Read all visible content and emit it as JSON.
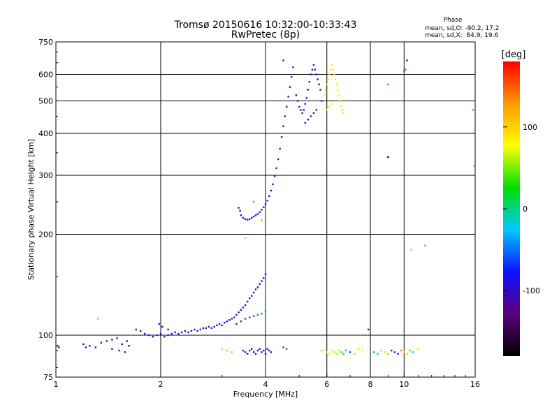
{
  "chart_data": {
    "type": "scatter",
    "title": "Tromsø 20150616 10:32:00-10:33:43",
    "subtitle": "RwPretec (8p)",
    "xlabel": "Frequency [MHz]",
    "ylabel": "Stationary phase Virtual Height [km]",
    "x_scale": "log",
    "y_scale": "log",
    "xlim": [
      1,
      16
    ],
    "ylim": [
      75,
      750
    ],
    "x_ticks": [
      1,
      2,
      4,
      6,
      8,
      10,
      16
    ],
    "y_ticks": [
      75,
      100,
      200,
      300,
      400,
      500,
      600,
      750
    ],
    "grid": true,
    "phase_info": {
      "title": "Phase",
      "line_o": "mean, sd,O: -90.2, 17.2",
      "line_x": "mean, sd,X:  84.9, 19.6"
    },
    "colorbar": {
      "label": "[deg]",
      "ticks": [
        "100",
        "0",
        "-100"
      ],
      "tick_values": [
        100,
        0,
        -100
      ],
      "range": [
        -180,
        180
      ],
      "colors": [
        "#000000",
        "#5a007a",
        "#1010ff",
        "#00c8ff",
        "#00e000",
        "#ffff00",
        "#ff9a00",
        "#ff0000"
      ]
    },
    "series": [
      {
        "points": [
          [
            1.01,
            93,
            -90
          ],
          [
            1.02,
            92,
            -80
          ],
          [
            1.2,
            94,
            -95
          ],
          [
            1.22,
            92,
            -100
          ],
          [
            1.25,
            93,
            -90
          ],
          [
            1.3,
            92,
            -85
          ],
          [
            1.35,
            95,
            -88
          ],
          [
            1.4,
            96,
            -92
          ],
          [
            1.45,
            97,
            -95
          ],
          [
            1.5,
            98,
            -90
          ],
          [
            1.55,
            94,
            -100
          ],
          [
            1.6,
            96,
            -85
          ],
          [
            1.62,
            93,
            -80
          ],
          [
            1.45,
            91,
            -70
          ],
          [
            1.52,
            90,
            -95
          ],
          [
            1.58,
            89,
            -100
          ],
          [
            1.7,
            104,
            -92
          ],
          [
            1.75,
            103,
            -88
          ],
          [
            1.8,
            101,
            -90
          ],
          [
            1.85,
            100,
            -95
          ],
          [
            1.9,
            99,
            -100
          ],
          [
            1.95,
            100,
            -90
          ],
          [
            2.0,
            101,
            -85
          ],
          [
            2.05,
            99,
            -88
          ],
          [
            2.1,
            100,
            -92
          ],
          [
            2.15,
            101,
            -95
          ],
          [
            2.2,
            102,
            -90
          ],
          [
            2.25,
            101,
            -88
          ],
          [
            2.3,
            102,
            -92
          ],
          [
            2.35,
            103,
            -95
          ],
          [
            2.4,
            102,
            -90
          ],
          [
            2.45,
            103,
            -88
          ],
          [
            2.5,
            104,
            -92
          ],
          [
            2.55,
            103,
            -95
          ],
          [
            2.6,
            104,
            -90
          ],
          [
            2.65,
            105,
            -88
          ],
          [
            2.7,
            105,
            -92
          ],
          [
            2.75,
            106,
            -95
          ],
          [
            2.8,
            105,
            -90
          ],
          [
            2.85,
            106,
            -88
          ],
          [
            2.9,
            107,
            -92
          ],
          [
            2.95,
            108,
            -95
          ],
          [
            3.0,
            107,
            -90
          ],
          [
            3.05,
            109,
            -88
          ],
          [
            3.1,
            110,
            -92
          ],
          [
            3.15,
            111,
            -95
          ],
          [
            3.2,
            112,
            -90
          ],
          [
            3.25,
            113,
            -88
          ],
          [
            3.3,
            115,
            -92
          ],
          [
            3.35,
            117,
            -95
          ],
          [
            3.4,
            119,
            -90
          ],
          [
            3.45,
            121,
            -88
          ],
          [
            3.5,
            123,
            -92
          ],
          [
            3.55,
            126,
            -95
          ],
          [
            3.6,
            129,
            -90
          ],
          [
            3.65,
            131,
            -88
          ],
          [
            3.7,
            134,
            -92
          ],
          [
            3.75,
            137,
            -95
          ],
          [
            3.8,
            139,
            -90
          ],
          [
            3.85,
            142,
            -88
          ],
          [
            3.9,
            145,
            -92
          ],
          [
            3.95,
            148,
            -95
          ],
          [
            4.0,
            152,
            -90
          ],
          [
            3.3,
            108,
            -75
          ],
          [
            3.4,
            110,
            -70
          ],
          [
            3.5,
            112,
            -65
          ],
          [
            3.6,
            113,
            -60
          ],
          [
            3.7,
            114,
            -55
          ],
          [
            3.8,
            115,
            -50
          ],
          [
            3.9,
            116,
            -45
          ],
          [
            4.0,
            118,
            -40
          ],
          [
            1.98,
            108,
            -80
          ],
          [
            2.02,
            106,
            -82
          ],
          [
            2.1,
            104,
            -84
          ],
          [
            3.35,
            240,
            -95
          ],
          [
            3.38,
            235,
            -92
          ],
          [
            3.4,
            228,
            -90
          ],
          [
            3.45,
            224,
            -92
          ],
          [
            3.5,
            222,
            -95
          ],
          [
            3.55,
            221,
            -90
          ],
          [
            3.6,
            222,
            -88
          ],
          [
            3.65,
            224,
            -92
          ],
          [
            3.7,
            226,
            -95
          ],
          [
            3.75,
            228,
            -90
          ],
          [
            3.8,
            230,
            -88
          ],
          [
            3.85,
            233,
            -92
          ],
          [
            3.9,
            237,
            -95
          ],
          [
            3.95,
            241,
            -90
          ],
          [
            4.0,
            246,
            -88
          ],
          [
            4.05,
            252,
            -92
          ],
          [
            4.1,
            260,
            -95
          ],
          [
            4.15,
            270,
            -90
          ],
          [
            4.2,
            282,
            -88
          ],
          [
            4.25,
            298,
            -92
          ],
          [
            4.3,
            315,
            -95
          ],
          [
            4.35,
            335,
            -90
          ],
          [
            4.4,
            360,
            -88
          ],
          [
            4.45,
            390,
            -92
          ],
          [
            4.5,
            420,
            -95
          ],
          [
            4.55,
            450,
            -90
          ],
          [
            4.6,
            480,
            -88
          ],
          [
            4.65,
            515,
            -92
          ],
          [
            4.7,
            550,
            -95
          ],
          [
            4.75,
            590,
            -90
          ],
          [
            4.8,
            630,
            -88
          ],
          [
            4.5,
            660,
            -85
          ],
          [
            4.9,
            520,
            -100
          ],
          [
            4.95,
            500,
            -95
          ],
          [
            5.0,
            480,
            -90
          ],
          [
            5.05,
            470,
            -92
          ],
          [
            5.1,
            460,
            -95
          ],
          [
            5.15,
            470,
            -90
          ],
          [
            5.2,
            490,
            -88
          ],
          [
            5.25,
            510,
            -92
          ],
          [
            5.3,
            540,
            -95
          ],
          [
            5.35,
            570,
            -90
          ],
          [
            5.4,
            600,
            -88
          ],
          [
            5.45,
            620,
            -92
          ],
          [
            5.5,
            640,
            -95
          ],
          [
            5.55,
            620,
            -90
          ],
          [
            5.6,
            600,
            -88
          ],
          [
            5.65,
            580,
            -92
          ],
          [
            5.7,
            560,
            -95
          ],
          [
            5.75,
            540,
            -90
          ],
          [
            5.2,
            430,
            -88
          ],
          [
            5.3,
            440,
            -92
          ],
          [
            5.4,
            450,
            -95
          ],
          [
            5.5,
            460,
            -90
          ],
          [
            5.6,
            470,
            -88
          ],
          [
            5.8,
            500,
            -92
          ],
          [
            5.9,
            520,
            80
          ],
          [
            5.95,
            540,
            90
          ],
          [
            6.0,
            560,
            85
          ],
          [
            6.05,
            580,
            88
          ],
          [
            6.1,
            600,
            92
          ],
          [
            6.15,
            620,
            95
          ],
          [
            6.2,
            640,
            90
          ],
          [
            6.25,
            620,
            85
          ],
          [
            6.3,
            600,
            88
          ],
          [
            6.35,
            580,
            92
          ],
          [
            6.4,
            560,
            95
          ],
          [
            6.45,
            540,
            90
          ],
          [
            6.5,
            520,
            85
          ],
          [
            6.55,
            500,
            88
          ],
          [
            6.6,
            480,
            92
          ],
          [
            6.65,
            470,
            95
          ],
          [
            6.7,
            460,
            90
          ],
          [
            6.0,
            470,
            80
          ],
          [
            6.1,
            480,
            85
          ],
          [
            6.2,
            490,
            75
          ],
          [
            1.32,
            112,
            120
          ],
          [
            3.5,
            195,
            110
          ],
          [
            3.7,
            250,
            140
          ],
          [
            3.9,
            220,
            130
          ],
          [
            3.45,
            90,
            -95
          ],
          [
            3.5,
            89,
            -100
          ],
          [
            3.55,
            88,
            -90
          ],
          [
            3.6,
            90,
            -85
          ],
          [
            3.65,
            91,
            -92
          ],
          [
            3.7,
            89,
            -95
          ],
          [
            3.75,
            88,
            -90
          ],
          [
            3.8,
            90,
            -88
          ],
          [
            3.85,
            91,
            -92
          ],
          [
            3.9,
            89,
            -95
          ],
          [
            3.95,
            90,
            -90
          ],
          [
            4.0,
            88,
            -88
          ],
          [
            4.05,
            91,
            -92
          ],
          [
            4.1,
            90,
            -95
          ],
          [
            4.15,
            89,
            -90
          ],
          [
            3.0,
            91,
            110
          ],
          [
            3.1,
            90,
            115
          ],
          [
            3.2,
            89,
            120
          ],
          [
            4.5,
            92,
            -60
          ],
          [
            4.6,
            91,
            -55
          ],
          [
            5.8,
            90,
            60
          ],
          [
            6.0,
            89,
            70
          ],
          [
            6.1,
            88,
            80
          ],
          [
            6.2,
            90,
            90
          ],
          [
            6.3,
            89,
            100
          ],
          [
            6.4,
            88,
            60
          ],
          [
            6.5,
            90,
            70
          ],
          [
            6.6,
            89,
            40
          ],
          [
            6.7,
            88,
            20
          ],
          [
            6.8,
            90,
            -20
          ],
          [
            7.0,
            89,
            -60
          ],
          [
            7.2,
            88,
            110
          ],
          [
            7.4,
            91,
            100
          ],
          [
            7.6,
            90,
            80
          ],
          [
            8.2,
            89,
            -40
          ],
          [
            8.4,
            88,
            20
          ],
          [
            8.6,
            90,
            60
          ],
          [
            8.8,
            89,
            100
          ],
          [
            9.0,
            88,
            120
          ],
          [
            9.2,
            90,
            -100
          ],
          [
            9.4,
            89,
            -90
          ],
          [
            9.6,
            88,
            -80
          ],
          [
            9.8,
            90,
            140
          ],
          [
            10.0,
            89,
            100
          ],
          [
            10.2,
            88,
            60
          ],
          [
            10.4,
            90,
            40
          ],
          [
            10.6,
            89,
            -20
          ],
          [
            11.0,
            91,
            90
          ],
          [
            7.9,
            104,
            -100
          ],
          [
            9.0,
            340,
            -180
          ],
          [
            9.0,
            560,
            160
          ],
          [
            10.2,
            660,
            -110
          ],
          [
            10.1,
            620,
            -40
          ],
          [
            10.0,
            615,
            -50
          ],
          [
            10.5,
            180,
            120
          ],
          [
            11.5,
            185,
            140
          ],
          [
            15.8,
            470,
            140
          ],
          [
            15.9,
            320,
            110
          ]
        ]
      }
    ]
  }
}
